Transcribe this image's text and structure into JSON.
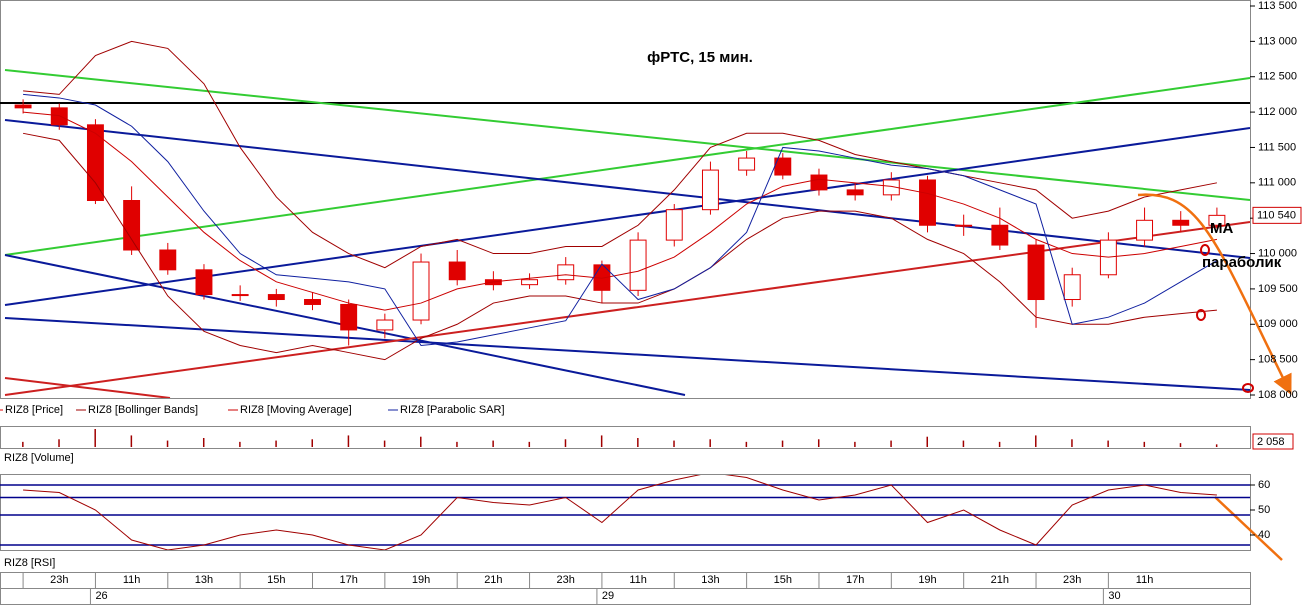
{
  "chart_data": [
    {
      "type": "candlestick",
      "title": "фРТС, 15 мин.",
      "annotations": [
        "MA",
        "параболик"
      ],
      "last_price_label": "110 540",
      "categories": [
        null,
        "23h",
        null,
        "11h",
        null,
        "13h",
        null,
        "15h",
        null,
        "17h",
        null,
        "19h",
        null,
        "21h",
        null,
        "23h",
        null,
        "11h",
        null,
        "13h",
        null,
        "15h",
        null,
        "17h",
        null,
        "19h",
        null,
        "21h",
        null,
        "23h",
        null,
        "11h",
        null,
        null
      ],
      "dates": [
        null,
        null,
        "26",
        null,
        null,
        null,
        null,
        null,
        null,
        null,
        null,
        null,
        null,
        null,
        null,
        null,
        "29",
        null,
        null,
        null,
        null,
        null,
        null,
        null,
        null,
        null,
        null,
        null,
        null,
        null,
        "30",
        null,
        null,
        null
      ],
      "ylim": [
        108000,
        113500
      ],
      "yticks": [
        {
          "value": 108000,
          "label": "108 000"
        },
        {
          "value": 108500,
          "label": "108 500"
        },
        {
          "value": 109000,
          "label": "109 000"
        },
        {
          "value": 109500,
          "label": "109 500"
        },
        {
          "value": 110000,
          "label": "110 000"
        },
        {
          "value": 110500,
          "label": "110 500"
        },
        {
          "value": 111000,
          "label": "111 000"
        },
        {
          "value": 111500,
          "label": "111 500"
        },
        {
          "value": 112000,
          "label": "112 000"
        },
        {
          "value": 112500,
          "label": "112 500"
        },
        {
          "value": 113000,
          "label": "113 000"
        },
        {
          "value": 113500,
          "label": "113 500"
        }
      ],
      "series": [
        {
          "name": "RIZ8 [Price]",
          "color": "#e00000",
          "open": [
            112100,
            112060,
            111820,
            110750,
            110050,
            109770,
            109420,
            109420,
            109350,
            109280,
            108920,
            109060,
            109880,
            109630,
            109560,
            109630,
            109840,
            109480,
            110190,
            110620,
            111180,
            111350,
            111110,
            110900,
            110830,
            111040,
            110400,
            110400,
            110120,
            109350,
            109700,
            110190,
            110470,
            110400
          ],
          "high": [
            112180,
            112120,
            111900,
            110950,
            110150,
            109850,
            109550,
            109500,
            109450,
            109350,
            109150,
            110000,
            110050,
            109750,
            109720,
            109950,
            109900,
            110300,
            110700,
            111300,
            111450,
            111420,
            111200,
            111000,
            111150,
            111100,
            110550,
            110650,
            110200,
            109800,
            110300,
            110650,
            110600,
            110650
          ],
          "low": [
            111980,
            111750,
            110700,
            109980,
            109700,
            109350,
            109330,
            109250,
            109200,
            108700,
            108800,
            109000,
            109550,
            109480,
            109500,
            109560,
            109300,
            109400,
            110100,
            110550,
            111100,
            111050,
            110820,
            110750,
            110750,
            110300,
            110250,
            110050,
            108950,
            109250,
            109650,
            110100,
            110300,
            110350
          ],
          "close": [
            112060,
            111820,
            110750,
            110050,
            109770,
            109420,
            109420,
            109350,
            109280,
            108920,
            109060,
            109880,
            109630,
            109560,
            109630,
            109840,
            109480,
            110190,
            110620,
            111180,
            111350,
            111110,
            110900,
            110830,
            111040,
            110400,
            110400,
            110120,
            109350,
            109700,
            110190,
            110470,
            110400,
            110540
          ]
        },
        {
          "name": "RIZ8 [Bollinger Bands]",
          "color": "#a00000",
          "upper": [
            112300,
            112250,
            112800,
            113000,
            112900,
            112400,
            111500,
            110800,
            110300,
            110000,
            109800,
            110100,
            110200,
            110000,
            110000,
            110100,
            110100,
            110400,
            110900,
            111500,
            111700,
            111700,
            111600,
            111400,
            111300,
            111200,
            111100,
            111000,
            110900,
            110500,
            110600,
            110800,
            110900,
            111000
          ],
          "lower": [
            111700,
            111600,
            111000,
            110200,
            109400,
            108900,
            108700,
            108600,
            108700,
            108600,
            108500,
            108800,
            109000,
            109300,
            109400,
            109400,
            109300,
            109300,
            109500,
            109800,
            110200,
            110500,
            110600,
            110600,
            110500,
            110200,
            110000,
            109600,
            109100,
            109000,
            109000,
            109100,
            109150,
            109200
          ]
        },
        {
          "name": "RIZ8 [Moving Average]",
          "color": "#cc0000",
          "values": [
            112000,
            111950,
            111700,
            111300,
            110800,
            110300,
            109900,
            109600,
            109450,
            109300,
            109200,
            109300,
            109500,
            109600,
            109650,
            109700,
            109650,
            109750,
            109950,
            110300,
            110700,
            110950,
            111050,
            111000,
            110950,
            110850,
            110700,
            110500,
            110200,
            110000,
            109950,
            110000,
            110100,
            110200
          ]
        },
        {
          "name": "RIZ8 [Parabolic SAR]",
          "color": "#1020a0",
          "values": [
            112250,
            112200,
            112100,
            111800,
            111300,
            110600,
            110000,
            109700,
            109650,
            109600,
            109500,
            108700,
            108750,
            108850,
            108950,
            109050,
            109850,
            109350,
            109500,
            109800,
            110300,
            111500,
            111450,
            111350,
            111250,
            111200,
            111100,
            110900,
            110700,
            109000,
            109100,
            109300,
            109600,
            109900
          ]
        }
      ]
    },
    {
      "type": "bar",
      "title": "RIZ8 [Volume]",
      "color": "#a00000",
      "values": [
        4000,
        6000,
        14000,
        9000,
        5000,
        7000,
        4000,
        5000,
        6000,
        9000,
        5000,
        8000,
        4000,
        5000,
        4000,
        6000,
        9000,
        7000,
        5000,
        6000,
        4000,
        5000,
        6000,
        4000,
        5000,
        8000,
        5000,
        4000,
        9000,
        6000,
        5000,
        4000,
        3000,
        2058
      ],
      "value_labels": [
        null,
        null,
        null,
        null,
        null,
        null,
        null,
        null,
        null,
        null,
        null,
        null,
        null,
        null,
        null,
        null,
        null,
        null,
        null,
        null,
        null,
        null,
        null,
        null,
        null,
        null,
        null,
        null,
        null,
        null,
        null,
        null,
        null,
        "2 058"
      ]
    },
    {
      "type": "line",
      "title": "RIZ8 [RSI]",
      "ylim": [
        34,
        64
      ],
      "yticks": [
        40,
        50,
        60
      ],
      "levels": [
        60,
        55,
        48,
        36
      ],
      "level_color": "#00008b",
      "series": [
        {
          "color": "#a00000",
          "values": [
            58,
            57,
            50,
            38,
            34,
            36,
            40,
            42,
            40,
            36,
            34,
            40,
            55,
            53,
            52,
            55,
            45,
            58,
            62,
            65,
            63,
            58,
            54,
            56,
            60,
            45,
            50,
            42,
            36,
            52,
            58,
            60,
            57,
            56
          ]
        }
      ]
    }
  ]
}
